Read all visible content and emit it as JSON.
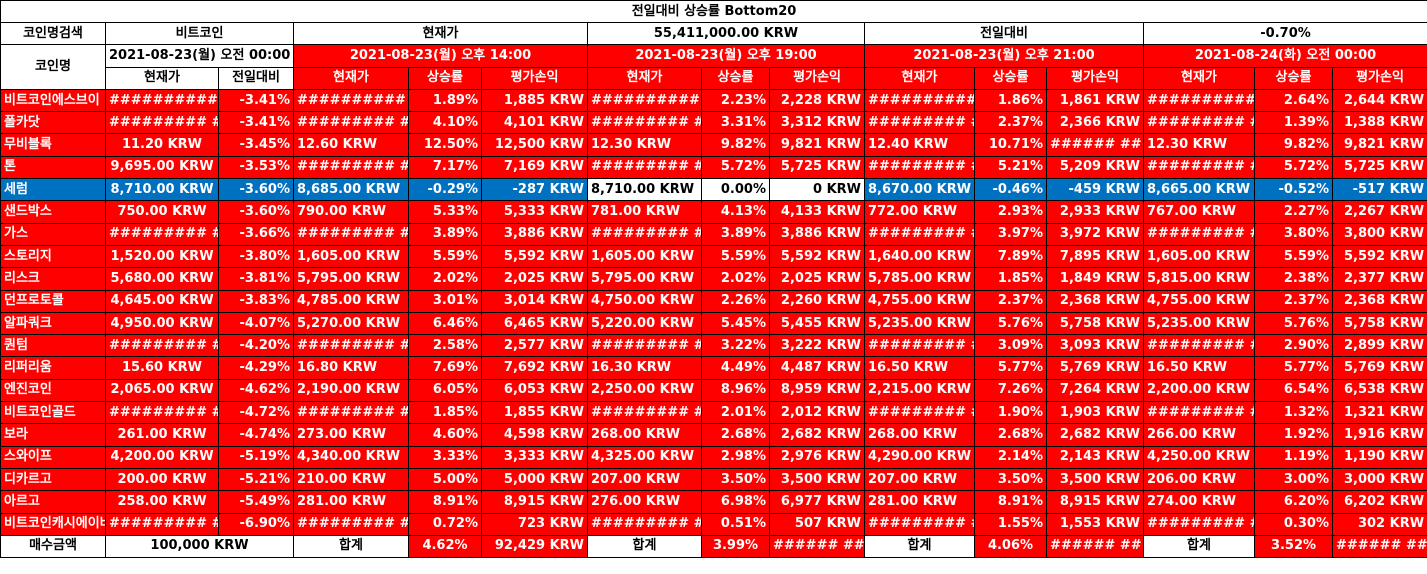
{
  "title": "전일대비 상승률 Bottom20",
  "search": {
    "label": "코인명검색",
    "value": "비트코인",
    "current_label": "현재가",
    "price": "55,411,000.00 KRW",
    "change_label": "전일대비",
    "change": "-0.70%"
  },
  "coin_header": "코인명",
  "base": {
    "date": "2021-08-23(월) 오전 00:00",
    "col_price": "현재가",
    "col_change": "전일대비"
  },
  "periods": [
    {
      "date": "2021-08-23(월) 오후 14:00",
      "cols": [
        "현재가",
        "상승률",
        "평가손익"
      ]
    },
    {
      "date": "2021-08-23(월) 오후 19:00",
      "cols": [
        "현재가",
        "상승률",
        "평가손익"
      ]
    },
    {
      "date": "2021-08-23(월) 오후 21:00",
      "cols": [
        "현재가",
        "상승률",
        "평가손익"
      ]
    },
    {
      "date": "2021-08-24(화) 오전 00:00",
      "cols": [
        "현재가",
        "상승률",
        "평가손익"
      ]
    }
  ],
  "rows": [
    {
      "name": "비트코인에스브이",
      "base": [
        "##########",
        "-3.41%"
      ],
      "p": [
        [
          "##########",
          "1.89%",
          "1,885 KRW"
        ],
        [
          "##########",
          "2.23%",
          "2,228 KRW"
        ],
        [
          "##########",
          "1.86%",
          "1,861 KRW"
        ],
        [
          "##########",
          "2.64%",
          "2,644 KRW"
        ]
      ]
    },
    {
      "name": "폴카닷",
      "base": [
        "######### #",
        "-3.41%"
      ],
      "p": [
        [
          "######### #",
          "4.10%",
          "4,101 KRW"
        ],
        [
          "######### #",
          "3.31%",
          "3,312 KRW"
        ],
        [
          "######### #",
          "2.37%",
          "2,366 KRW"
        ],
        [
          "######### #",
          "1.39%",
          "1,388 KRW"
        ]
      ]
    },
    {
      "name": "무비블록",
      "base": [
        "11.20 KRW",
        "-3.45%"
      ],
      "p": [
        [
          "12.60 KRW",
          "12.50%",
          "12,500 KRW"
        ],
        [
          "12.30 KRW",
          "9.82%",
          "9,821 KRW"
        ],
        [
          "12.40 KRW",
          "10.71%",
          "###### ##"
        ],
        [
          "12.30 KRW",
          "9.82%",
          "9,821 KRW"
        ]
      ]
    },
    {
      "name": "톤",
      "base": [
        "9,695.00 KRW",
        "-3.53%"
      ],
      "p": [
        [
          "######### #",
          "7.17%",
          "7,169 KRW"
        ],
        [
          "######### #",
          "5.72%",
          "5,725 KRW"
        ],
        [
          "######### #",
          "5.21%",
          "5,209 KRW"
        ],
        [
          "######### #",
          "5.72%",
          "5,725 KRW"
        ]
      ]
    },
    {
      "name": "세럼",
      "highlight": true,
      "base": [
        "8,710.00 KRW",
        "-3.60%"
      ],
      "p": [
        [
          "8,685.00 KRW",
          "-0.29%",
          "-287 KRW"
        ],
        [
          "8,710.00 KRW",
          "0.00%",
          "0 KRW"
        ],
        [
          "8,670.00 KRW",
          "-0.46%",
          "-459 KRW"
        ],
        [
          "8,665.00 KRW",
          "-0.52%",
          "-517 KRW"
        ]
      ]
    },
    {
      "name": "샌드박스",
      "base": [
        "750.00 KRW",
        "-3.60%"
      ],
      "p": [
        [
          "790.00 KRW",
          "5.33%",
          "5,333 KRW"
        ],
        [
          "781.00 KRW",
          "4.13%",
          "4,133 KRW"
        ],
        [
          "772.00 KRW",
          "2.93%",
          "2,933 KRW"
        ],
        [
          "767.00 KRW",
          "2.27%",
          "2,267 KRW"
        ]
      ]
    },
    {
      "name": "가스",
      "base": [
        "######### #",
        "-3.66%"
      ],
      "p": [
        [
          "######### #",
          "3.89%",
          "3,886 KRW"
        ],
        [
          "######### #",
          "3.89%",
          "3,886 KRW"
        ],
        [
          "######### #",
          "3.97%",
          "3,972 KRW"
        ],
        [
          "######### #",
          "3.80%",
          "3,800 KRW"
        ]
      ]
    },
    {
      "name": "스토리지",
      "base": [
        "1,520.00 KRW",
        "-3.80%"
      ],
      "p": [
        [
          "1,605.00 KRW",
          "5.59%",
          "5,592 KRW"
        ],
        [
          "1,605.00 KRW",
          "5.59%",
          "5,592 KRW"
        ],
        [
          "1,640.00 KRW",
          "7.89%",
          "7,895 KRW"
        ],
        [
          "1,605.00 KRW",
          "5.59%",
          "5,592 KRW"
        ]
      ]
    },
    {
      "name": "리스크",
      "base": [
        "5,680.00 KRW",
        "-3.81%"
      ],
      "p": [
        [
          "5,795.00 KRW",
          "2.02%",
          "2,025 KRW"
        ],
        [
          "5,795.00 KRW",
          "2.02%",
          "2,025 KRW"
        ],
        [
          "5,785.00 KRW",
          "1.85%",
          "1,849 KRW"
        ],
        [
          "5,815.00 KRW",
          "2.38%",
          "2,377 KRW"
        ]
      ]
    },
    {
      "name": "던프로토콜",
      "base": [
        "4,645.00 KRW",
        "-3.83%"
      ],
      "p": [
        [
          "4,785.00 KRW",
          "3.01%",
          "3,014 KRW"
        ],
        [
          "4,750.00 KRW",
          "2.26%",
          "2,260 KRW"
        ],
        [
          "4,755.00 KRW",
          "2.37%",
          "2,368 KRW"
        ],
        [
          "4,755.00 KRW",
          "2.37%",
          "2,368 KRW"
        ]
      ]
    },
    {
      "name": "알파쿼크",
      "base": [
        "4,950.00 KRW",
        "-4.07%"
      ],
      "p": [
        [
          "5,270.00 KRW",
          "6.46%",
          "6,465 KRW"
        ],
        [
          "5,220.00 KRW",
          "5.45%",
          "5,455 KRW"
        ],
        [
          "5,235.00 KRW",
          "5.76%",
          "5,758 KRW"
        ],
        [
          "5,235.00 KRW",
          "5.76%",
          "5,758 KRW"
        ]
      ]
    },
    {
      "name": "퀀텀",
      "base": [
        "######### #",
        "-4.20%"
      ],
      "p": [
        [
          "######### #",
          "2.58%",
          "2,577 KRW"
        ],
        [
          "######### #",
          "3.22%",
          "3,222 KRW"
        ],
        [
          "######### #",
          "3.09%",
          "3,093 KRW"
        ],
        [
          "######### #",
          "2.90%",
          "2,899 KRW"
        ]
      ]
    },
    {
      "name": "리퍼리움",
      "base": [
        "15.60 KRW",
        "-4.29%"
      ],
      "p": [
        [
          "16.80 KRW",
          "7.69%",
          "7,692 KRW"
        ],
        [
          "16.30 KRW",
          "4.49%",
          "4,487 KRW"
        ],
        [
          "16.50 KRW",
          "5.77%",
          "5,769 KRW"
        ],
        [
          "16.50 KRW",
          "5.77%",
          "5,769 KRW"
        ]
      ]
    },
    {
      "name": "엔진코인",
      "base": [
        "2,065.00 KRW",
        "-4.62%"
      ],
      "p": [
        [
          "2,190.00 KRW",
          "6.05%",
          "6,053 KRW"
        ],
        [
          "2,250.00 KRW",
          "8.96%",
          "8,959 KRW"
        ],
        [
          "2,215.00 KRW",
          "7.26%",
          "7,264 KRW"
        ],
        [
          "2,200.00 KRW",
          "6.54%",
          "6,538 KRW"
        ]
      ]
    },
    {
      "name": "비트코인골드",
      "base": [
        "######### #",
        "-4.72%"
      ],
      "p": [
        [
          "######### #",
          "1.85%",
          "1,855 KRW"
        ],
        [
          "######### #",
          "2.01%",
          "2,012 KRW"
        ],
        [
          "######### #",
          "1.90%",
          "1,903 KRW"
        ],
        [
          "######### #",
          "1.32%",
          "1,321 KRW"
        ]
      ]
    },
    {
      "name": "보라",
      "base": [
        "261.00 KRW",
        "-4.74%"
      ],
      "p": [
        [
          "273.00 KRW",
          "4.60%",
          "4,598 KRW"
        ],
        [
          "268.00 KRW",
          "2.68%",
          "2,682 KRW"
        ],
        [
          "268.00 KRW",
          "2.68%",
          "2,682 KRW"
        ],
        [
          "266.00 KRW",
          "1.92%",
          "1,916 KRW"
        ]
      ]
    },
    {
      "name": "스와이프",
      "base": [
        "4,200.00 KRW",
        "-5.19%"
      ],
      "p": [
        [
          "4,340.00 KRW",
          "3.33%",
          "3,333 KRW"
        ],
        [
          "4,325.00 KRW",
          "2.98%",
          "2,976 KRW"
        ],
        [
          "4,290.00 KRW",
          "2.14%",
          "2,143 KRW"
        ],
        [
          "4,250.00 KRW",
          "1.19%",
          "1,190 KRW"
        ]
      ]
    },
    {
      "name": "디카르고",
      "base": [
        "200.00 KRW",
        "-5.21%"
      ],
      "p": [
        [
          "210.00 KRW",
          "5.00%",
          "5,000 KRW"
        ],
        [
          "207.00 KRW",
          "3.50%",
          "3,500 KRW"
        ],
        [
          "207.00 KRW",
          "3.50%",
          "3,500 KRW"
        ],
        [
          "206.00 KRW",
          "3.00%",
          "3,000 KRW"
        ]
      ]
    },
    {
      "name": "아르고",
      "base": [
        "258.00 KRW",
        "-5.49%"
      ],
      "p": [
        [
          "281.00 KRW",
          "8.91%",
          "8,915 KRW"
        ],
        [
          "276.00 KRW",
          "6.98%",
          "6,977 KRW"
        ],
        [
          "281.00 KRW",
          "8.91%",
          "8,915 KRW"
        ],
        [
          "274.00 KRW",
          "6.20%",
          "6,202 KRW"
        ]
      ]
    },
    {
      "name": "비트코인캐시에이비씨",
      "base": [
        "######### #",
        "-6.90%"
      ],
      "p": [
        [
          "######### #",
          "0.72%",
          "723 KRW"
        ],
        [
          "######### #",
          "0.51%",
          "507 KRW"
        ],
        [
          "######### #",
          "1.55%",
          "1,553 KRW"
        ],
        [
          "######### #",
          "0.30%",
          "302 KRW"
        ]
      ]
    }
  ],
  "footer": {
    "label": "매수금액",
    "amount": "100,000 KRW",
    "totals": [
      {
        "label": "합계",
        "rate": "4.62%",
        "pnl": "92,429 KRW"
      },
      {
        "label": "합계",
        "rate": "3.99%",
        "pnl": "###### ##"
      },
      {
        "label": "합계",
        "rate": "4.06%",
        "pnl": "###### ##"
      },
      {
        "label": "합계",
        "rate": "3.52%",
        "pnl": "###### ##"
      }
    ]
  },
  "colors": {
    "red": "#ff0000",
    "blue": "#0070c0",
    "white": "#ffffff",
    "grid": "#000000"
  }
}
